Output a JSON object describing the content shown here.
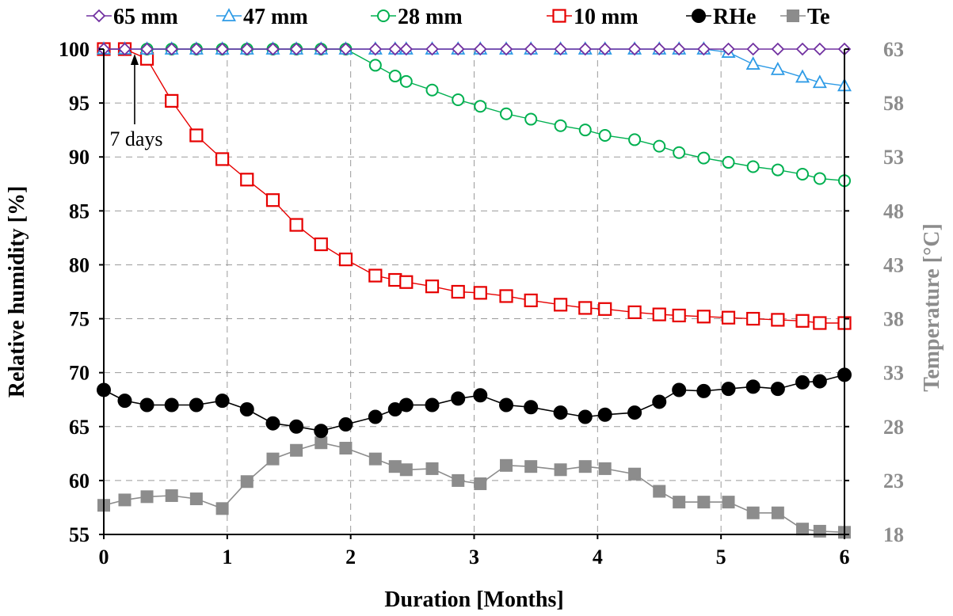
{
  "chart_data": {
    "type": "line",
    "xlabel": "Duration [Months]",
    "ylabel": "Relative humidity [%]",
    "y2label": "Temperature [°C]",
    "xlim": [
      0,
      6
    ],
    "ylim": [
      55,
      100
    ],
    "y2lim": [
      18,
      63
    ],
    "x_ticks": [
      "0",
      "1",
      "2",
      "3",
      "4",
      "5",
      "6"
    ],
    "y_ticks": [
      "55",
      "60",
      "65",
      "70",
      "75",
      "80",
      "85",
      "90",
      "95",
      "100"
    ],
    "y2_ticks": [
      "18",
      "23",
      "28",
      "33",
      "38",
      "43",
      "48",
      "53",
      "58",
      "63"
    ],
    "grid": true,
    "legend_position": "top",
    "annotation": {
      "text": "7 days",
      "x": 0.25,
      "y": 100
    },
    "colors": {
      "s65": "#7030a0",
      "s47": "#2e9be6",
      "s28": "#00b050",
      "s10": "#e60000",
      "rhe": "#000000",
      "te": "#8c8c8c"
    },
    "series": [
      {
        "name": "65 mm",
        "axis": "left",
        "marker": "diamond",
        "color_key": "s65",
        "x": [
          0,
          0.17,
          0.35,
          0.55,
          0.75,
          0.96,
          1.16,
          1.37,
          1.56,
          1.76,
          1.96,
          2.2,
          2.36,
          2.45,
          2.66,
          2.87,
          3.05,
          3.26,
          3.46,
          3.7,
          3.9,
          4.06,
          4.3,
          4.5,
          4.66,
          4.86,
          5.06,
          5.26,
          5.46,
          5.66,
          5.8,
          6.0
        ],
        "y": [
          100,
          100,
          100,
          100,
          100,
          100,
          100,
          100,
          100,
          100,
          100,
          100,
          100,
          100,
          100,
          100,
          100,
          100,
          100,
          100,
          100,
          100,
          100,
          100,
          100,
          100,
          100,
          100,
          100,
          100,
          100,
          100
        ]
      },
      {
        "name": "47 mm",
        "axis": "left",
        "marker": "triangle",
        "color_key": "s47",
        "x": [
          0,
          0.17,
          0.35,
          0.55,
          0.75,
          0.96,
          1.16,
          1.37,
          1.56,
          1.76,
          1.96,
          2.2,
          2.36,
          2.45,
          2.66,
          2.87,
          3.05,
          3.26,
          3.46,
          3.7,
          3.9,
          4.06,
          4.3,
          4.5,
          4.66,
          4.86,
          5.06,
          5.26,
          5.46,
          5.66,
          5.8,
          6.0
        ],
        "y": [
          100,
          100,
          100,
          100,
          100,
          100,
          100,
          100,
          100,
          100,
          100,
          100,
          100,
          100,
          100,
          100,
          100,
          100,
          100,
          100,
          100,
          100,
          100,
          100,
          100,
          100,
          99.7,
          98.6,
          98.1,
          97.4,
          96.9,
          96.6
        ]
      },
      {
        "name": "28 mm",
        "axis": "left",
        "marker": "circle-open",
        "color_key": "s28",
        "x": [
          0.35,
          0.55,
          0.75,
          0.96,
          1.16,
          1.37,
          1.56,
          1.76,
          1.96,
          2.2,
          2.36,
          2.45,
          2.66,
          2.87,
          3.05,
          3.26,
          3.46,
          3.7,
          3.9,
          4.06,
          4.3,
          4.5,
          4.66,
          4.86,
          5.06,
          5.26,
          5.46,
          5.66,
          5.8,
          6.0
        ],
        "y": [
          100,
          100,
          100,
          100,
          100,
          100,
          100,
          100,
          100,
          98.5,
          97.5,
          97.0,
          96.2,
          95.3,
          94.7,
          94.0,
          93.5,
          92.9,
          92.5,
          92.0,
          91.6,
          91.0,
          90.4,
          89.9,
          89.5,
          89.1,
          88.8,
          88.4,
          88.0,
          87.8
        ]
      },
      {
        "name": "10 mm",
        "axis": "left",
        "marker": "square-open",
        "color_key": "s10",
        "x": [
          0,
          0.17,
          0.35,
          0.55,
          0.75,
          0.96,
          1.16,
          1.37,
          1.56,
          1.76,
          1.96,
          2.2,
          2.36,
          2.45,
          2.66,
          2.87,
          3.05,
          3.26,
          3.46,
          3.7,
          3.9,
          4.06,
          4.3,
          4.5,
          4.66,
          4.86,
          5.06,
          5.26,
          5.46,
          5.66,
          5.8,
          6.0
        ],
        "y": [
          100,
          100,
          99.1,
          95.2,
          92.0,
          89.8,
          87.9,
          86.0,
          83.7,
          81.9,
          80.5,
          79.0,
          78.6,
          78.4,
          78.0,
          77.5,
          77.4,
          77.1,
          76.7,
          76.3,
          76.0,
          75.9,
          75.6,
          75.4,
          75.3,
          75.2,
          75.1,
          75.0,
          74.9,
          74.8,
          74.6,
          74.6
        ]
      },
      {
        "name": "RHe",
        "axis": "left",
        "marker": "circle-filled",
        "color_key": "rhe",
        "x": [
          0,
          0.17,
          0.35,
          0.55,
          0.75,
          0.96,
          1.16,
          1.37,
          1.56,
          1.76,
          1.96,
          2.2,
          2.36,
          2.45,
          2.66,
          2.87,
          3.05,
          3.26,
          3.46,
          3.7,
          3.9,
          4.06,
          4.3,
          4.5,
          4.66,
          4.86,
          5.06,
          5.26,
          5.46,
          5.66,
          5.8,
          6.0
        ],
        "y": [
          68.4,
          67.4,
          67.0,
          67.0,
          67.0,
          67.4,
          66.6,
          65.3,
          65.0,
          64.6,
          65.2,
          65.9,
          66.6,
          67.0,
          67.0,
          67.6,
          67.9,
          67.0,
          66.8,
          66.3,
          65.9,
          66.1,
          66.3,
          67.3,
          68.4,
          68.3,
          68.5,
          68.7,
          68.5,
          69.1,
          69.2,
          69.8
        ]
      },
      {
        "name": "Te",
        "axis": "right",
        "marker": "square-filled",
        "color_key": "te",
        "x": [
          0,
          0.17,
          0.35,
          0.55,
          0.75,
          0.96,
          1.16,
          1.37,
          1.56,
          1.76,
          1.96,
          2.2,
          2.36,
          2.45,
          2.66,
          2.87,
          3.05,
          3.26,
          3.46,
          3.7,
          3.9,
          4.06,
          4.3,
          4.5,
          4.66,
          4.86,
          5.06,
          5.26,
          5.46,
          5.66,
          5.8,
          6.0
        ],
        "y": [
          20.7,
          21.2,
          21.5,
          21.6,
          21.3,
          20.4,
          22.9,
          25.0,
          25.8,
          26.5,
          26.0,
          25.0,
          24.3,
          24.0,
          24.1,
          23.0,
          22.7,
          24.4,
          24.3,
          24.0,
          24.3,
          24.1,
          23.6,
          22.0,
          21.0,
          21.0,
          21.0,
          20.0,
          20.0,
          18.5,
          18.3,
          18.2
        ]
      }
    ]
  }
}
